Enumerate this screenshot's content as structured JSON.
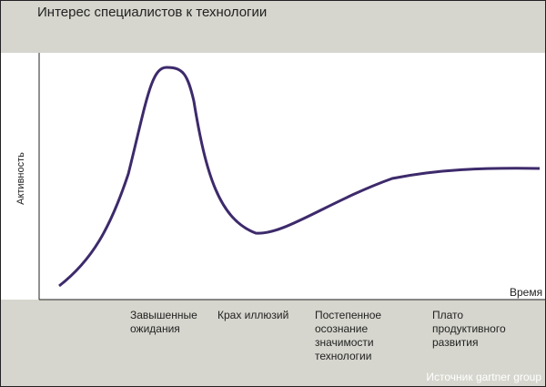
{
  "header": {
    "title": "Интерес специалистов к технологии"
  },
  "axes": {
    "y_label": "Активность",
    "x_label": "Время"
  },
  "phases": [
    {
      "lines": [
        "Завышенные",
        "ожидания"
      ]
    },
    {
      "lines": [
        "Крах иллюзий"
      ]
    },
    {
      "lines": [
        "Постепенное",
        "осознание",
        "значимости",
        "технологии"
      ]
    },
    {
      "lines": [
        "Плато",
        "продуктивного",
        "развития"
      ]
    }
  ],
  "source": "Источник gartner group"
}
